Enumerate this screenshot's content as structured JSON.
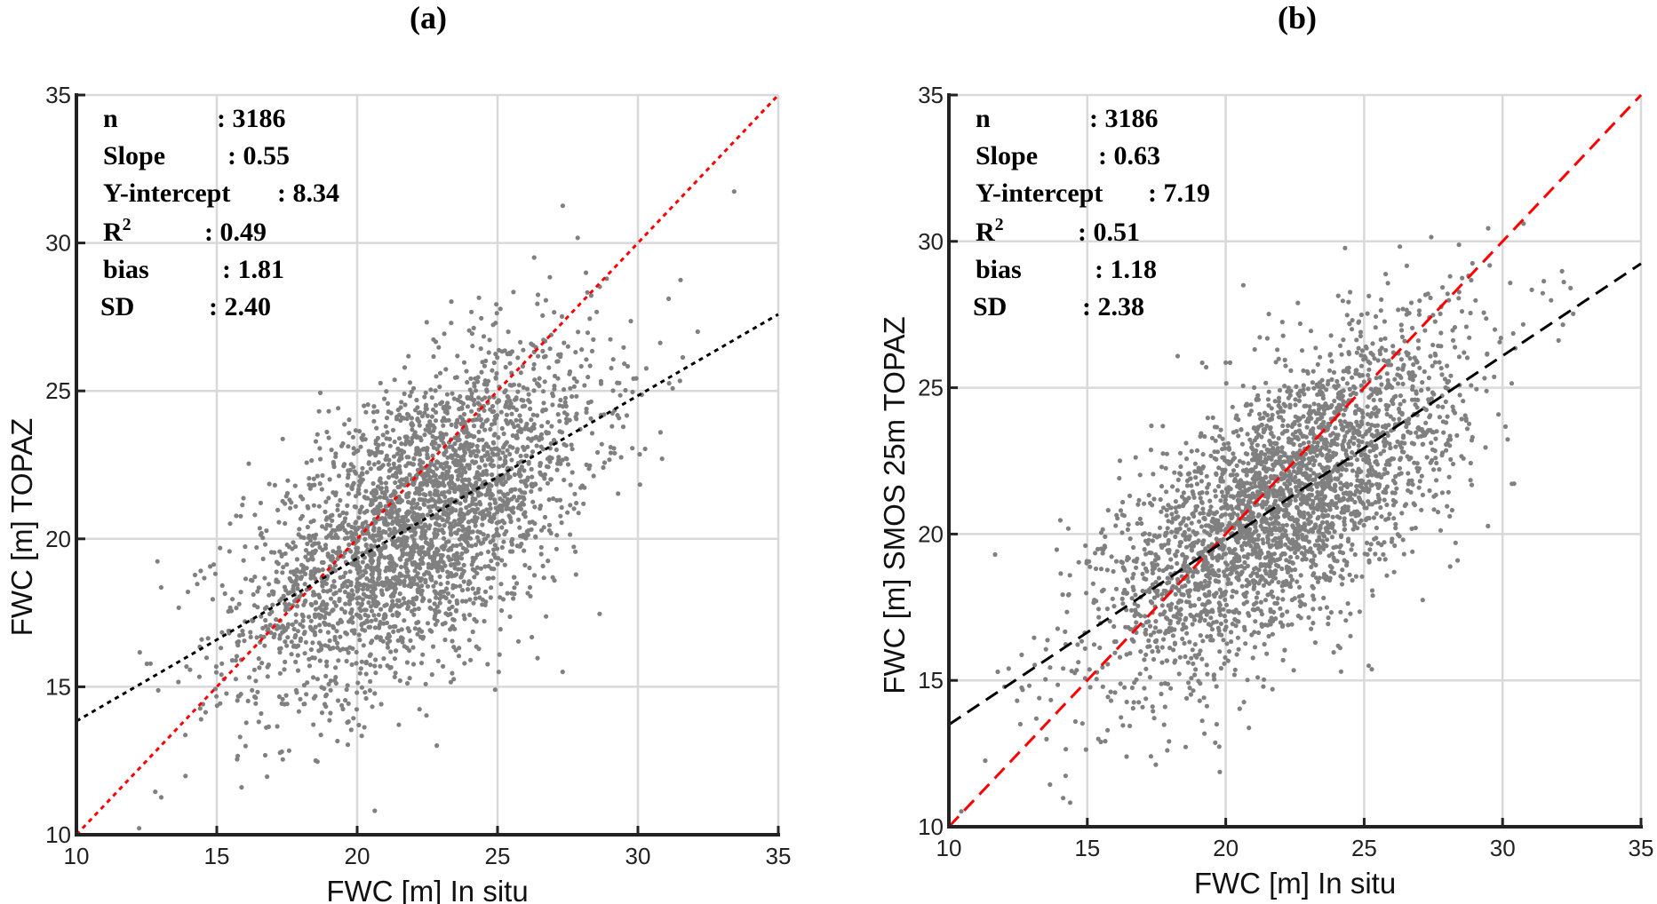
{
  "chart_data": [
    {
      "type": "scatter",
      "panel_label": "(a)",
      "xlabel": "FWC [m] In situ",
      "ylabel": "FWC [m] TOPAZ",
      "xlim": [
        10,
        35
      ],
      "ylim": [
        10,
        35
      ],
      "xticks": [
        "10",
        "15",
        "20",
        "25",
        "30",
        "35"
      ],
      "yticks": [
        "10",
        "15",
        "20",
        "25",
        "30",
        "35"
      ],
      "grid": true,
      "point_color": "#808080",
      "stats": [
        {
          "label": "n",
          "value": ": 3186"
        },
        {
          "label": "Slope",
          "value": ": 0.55"
        },
        {
          "label": "Y-intercept",
          "value": ": 8.34"
        },
        {
          "label": "R",
          "sup": "2",
          "value": ": 0.49"
        },
        {
          "label": "bias",
          "value": ": 1.81"
        },
        {
          "label": "SD",
          "value": ": 2.40"
        }
      ],
      "n": 3186,
      "fit_line": {
        "slope": 0.55,
        "intercept": 8.34,
        "color": "#000000",
        "style": "dotted"
      },
      "one_to_one_line": {
        "color": "#ff0000",
        "style": "dotted"
      }
    },
    {
      "type": "scatter",
      "panel_label": "(b)",
      "xlabel": "FWC [m] In situ",
      "ylabel": "FWC [m] SMOS 25m TOPAZ",
      "xlim": [
        10,
        35
      ],
      "ylim": [
        10,
        35
      ],
      "xticks": [
        "10",
        "15",
        "20",
        "25",
        "30",
        "35"
      ],
      "yticks": [
        "10",
        "15",
        "20",
        "25",
        "30",
        "35"
      ],
      "grid": true,
      "point_color": "#808080",
      "stats": [
        {
          "label": "n",
          "value": ": 3186"
        },
        {
          "label": "Slope",
          "value": ": 0.63"
        },
        {
          "label": "Y-intercept",
          "value": ": 7.19"
        },
        {
          "label": "R",
          "sup": "2",
          "value": ": 0.51"
        },
        {
          "label": "bias",
          "value": ": 1.18"
        },
        {
          "label": "SD",
          "value": ": 2.38"
        }
      ],
      "n": 3186,
      "fit_line": {
        "slope": 0.63,
        "intercept": 7.19,
        "color": "#000000",
        "style": "dashed"
      },
      "one_to_one_line": {
        "color": "#ff0000",
        "style": "dashed"
      }
    }
  ]
}
